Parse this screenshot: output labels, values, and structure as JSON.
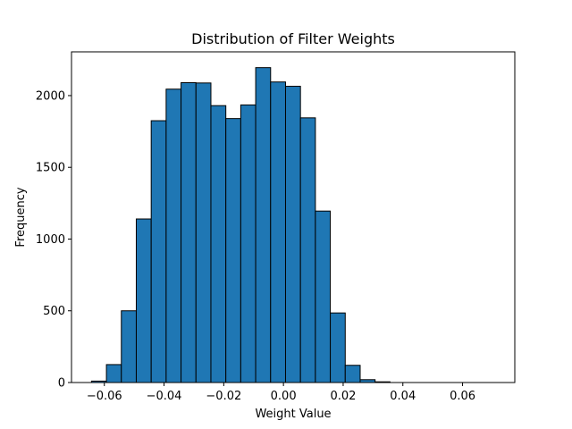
{
  "chart_data": {
    "type": "bar",
    "title": "Distribution of Filter Weights",
    "xlabel": "Weight Value",
    "ylabel": "Frequency",
    "bin_edges": [
      -0.0643,
      -0.0593,
      -0.0543,
      -0.0493,
      -0.0443,
      -0.0393,
      -0.0343,
      -0.0293,
      -0.0243,
      -0.0193,
      -0.0143,
      -0.0093,
      -0.0043,
      0.0007,
      0.0057,
      0.0107,
      0.0157,
      0.0207,
      0.0257,
      0.0307,
      0.0357,
      0.0407,
      0.0457,
      0.0507,
      0.0557,
      0.0607,
      0.0657,
      0.0707
    ],
    "values": [
      10,
      125,
      500,
      1140,
      1825,
      2045,
      2090,
      2088,
      1930,
      1840,
      1935,
      2195,
      2095,
      2065,
      1845,
      1195,
      485,
      120,
      20,
      5,
      0,
      0,
      0,
      0,
      0,
      0,
      0
    ],
    "x_ticks": [
      "−0.06",
      "−0.04",
      "−0.02",
      "0.00",
      "0.02",
      "0.04",
      "0.06"
    ],
    "x_tick_values": [
      -0.06,
      -0.04,
      -0.02,
      0.0,
      0.02,
      0.04,
      0.06
    ],
    "y_ticks": [
      "0",
      "500",
      "1000",
      "1500",
      "2000"
    ],
    "y_tick_values": [
      0,
      500,
      1000,
      1500,
      2000
    ],
    "xlim": [
      -0.071,
      0.0775
    ],
    "ylim": [
      0,
      2305
    ],
    "bar_color": "#1f77b4",
    "edge_color": "#000000",
    "grid": false,
    "legend": "none"
  }
}
